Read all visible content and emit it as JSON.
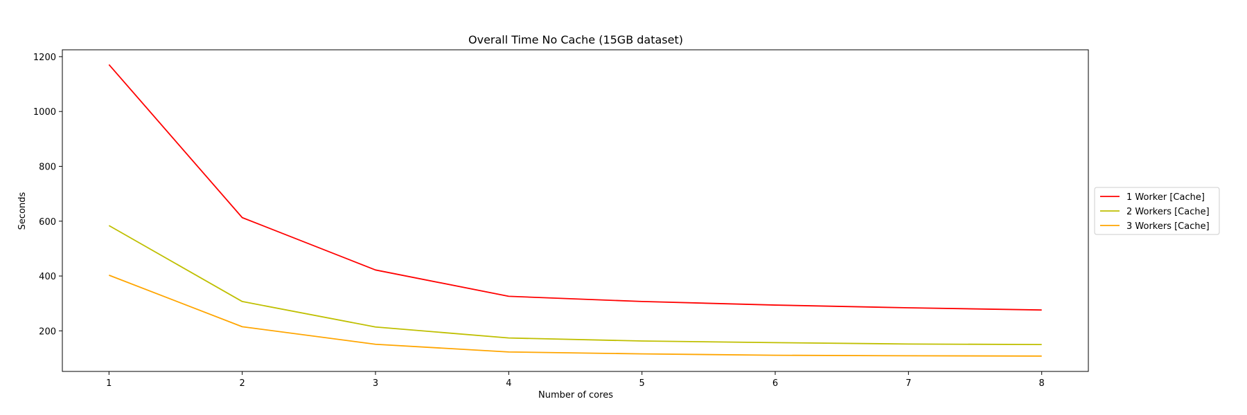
{
  "chart_data": {
    "type": "line",
    "title": "Overall Time No Cache (15GB dataset)",
    "xlabel": "Number of cores",
    "ylabel": "Seconds",
    "x": [
      1,
      2,
      3,
      4,
      5,
      6,
      7,
      8
    ],
    "xticks": [
      "1",
      "2",
      "3",
      "4",
      "5",
      "6",
      "7",
      "8"
    ],
    "yticks": [
      "200",
      "400",
      "600",
      "800",
      "1000",
      "1200"
    ],
    "xlim": [
      0.65,
      8.35
    ],
    "ylim": [
      52,
      1225
    ],
    "grid": false,
    "legend_position": "center-right",
    "series": [
      {
        "name": "1 Worker [Cache]",
        "color": "#ff0000",
        "values": [
          1171,
          613,
          422,
          326,
          307,
          294,
          284,
          276
        ]
      },
      {
        "name": "2 Workers [Cache]",
        "color": "#bfbf00",
        "values": [
          584,
          307,
          214,
          174,
          163,
          157,
          152,
          150
        ]
      },
      {
        "name": "3 Workers [Cache]",
        "color": "#ffa500",
        "values": [
          403,
          215,
          151,
          123,
          116,
          111,
          109,
          108
        ]
      }
    ]
  }
}
